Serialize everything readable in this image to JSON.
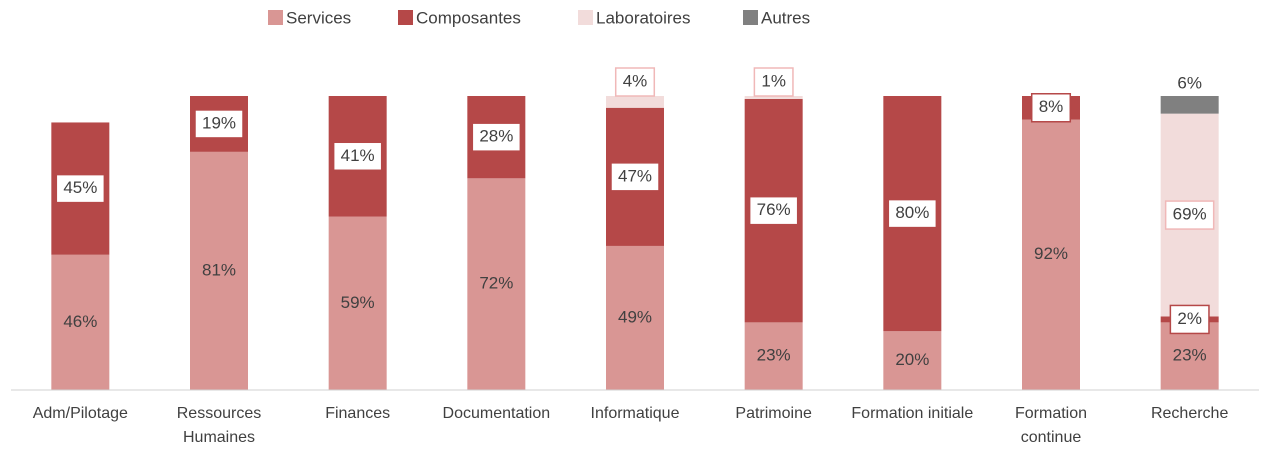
{
  "chart_data": {
    "type": "stacked_bar",
    "categories": [
      "Adm/Pilotage",
      "Ressources Humaines",
      "Finances",
      "Documentation",
      "Informatique",
      "Patrimoine",
      "Formation initiale",
      "Formation continue",
      "Recherche"
    ],
    "series": [
      {
        "name": "Services",
        "color": "#d99694",
        "values": [
          46,
          81,
          59,
          72,
          49,
          23,
          20,
          92,
          23
        ],
        "value_labels": [
          "46%",
          "81%",
          "59%",
          "72%",
          "49%",
          "23%",
          "20%",
          "92%",
          "23%"
        ]
      },
      {
        "name": "Composantes",
        "color": "#b54848",
        "values": [
          45,
          19,
          41,
          28,
          47,
          76,
          80,
          8,
          2
        ],
        "value_labels": [
          "45%",
          "19%",
          "41%",
          "28%",
          "47%",
          "76%",
          "80%",
          "8%",
          "2%"
        ]
      },
      {
        "name": "Laboratoires",
        "color": "#f2dcdb",
        "values": [
          null,
          null,
          null,
          null,
          4,
          1,
          null,
          null,
          69
        ],
        "value_labels": [
          null,
          null,
          null,
          null,
          "4%",
          "1%",
          null,
          null,
          "69%"
        ]
      },
      {
        "name": "Autres",
        "color": "#808080",
        "values": [
          null,
          null,
          null,
          null,
          null,
          null,
          null,
          null,
          6
        ],
        "value_labels": [
          null,
          null,
          null,
          null,
          null,
          null,
          null,
          null,
          "6%"
        ]
      }
    ],
    "ylim": [
      0,
      100
    ],
    "legend": "top"
  }
}
